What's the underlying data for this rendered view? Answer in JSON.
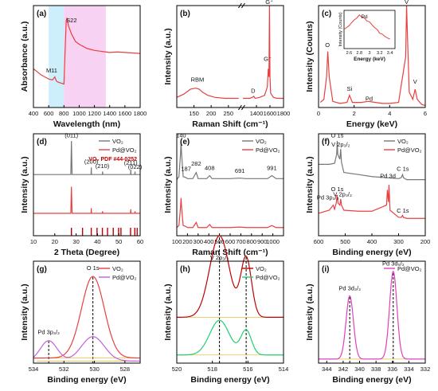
{
  "chart_data": [
    {
      "id": "a",
      "panel_label": "(a)",
      "type": "line",
      "xlabel": "Wavelength (nm)",
      "ylabel": "Absorbance (a.u.)",
      "xlim": [
        400,
        1800
      ],
      "xticks": [
        400,
        600,
        800,
        1000,
        1200,
        1400,
        1600,
        1800
      ],
      "ylim": [
        0,
        1
      ],
      "yticks_hidden": true,
      "bands": [
        {
          "x0": 600,
          "x1": 800,
          "color": "#cdeefb"
        },
        {
          "x0": 800,
          "x1": 1350,
          "color": "#f7d2f3"
        }
      ],
      "series": [
        {
          "color": "#e84040",
          "x": [
            400,
            450,
            500,
            550,
            600,
            650,
            680,
            700,
            720,
            760,
            800,
            815,
            830,
            840,
            860,
            900,
            950,
            1000,
            1050,
            1100,
            1200,
            1300,
            1400,
            1500,
            1600,
            1700,
            1800
          ],
          "y": [
            0.38,
            0.35,
            0.32,
            0.3,
            0.28,
            0.27,
            0.3,
            0.26,
            0.25,
            0.24,
            0.23,
            0.55,
            0.85,
            0.88,
            0.8,
            0.72,
            0.65,
            0.62,
            0.6,
            0.58,
            0.56,
            0.55,
            0.54,
            0.545,
            0.54,
            0.535,
            0.53
          ]
        }
      ],
      "annotations": [
        {
          "text": "M11",
          "x": 640,
          "y": 0.33
        },
        {
          "text": "S22",
          "x": 900,
          "y": 0.82
        }
      ]
    },
    {
      "id": "b",
      "panel_label": "(b)",
      "type": "line",
      "xlabel": "Raman Shift (cm⁻¹)",
      "ylabel": "Intensity (a.u.)",
      "xticks": [
        150,
        200,
        250,
        1400,
        1600,
        1800
      ],
      "axis_break": true,
      "ylim": [
        0,
        1
      ],
      "yticks_hidden": true,
      "series": [
        {
          "color": "#e84040",
          "left": {
            "x": [
              100,
              120,
              140,
              155,
              165,
              175,
              190,
              210,
              240,
              280
            ],
            "y": [
              0.1,
              0.13,
              0.18,
              0.19,
              0.18,
              0.15,
              0.12,
              0.1,
              0.09,
              0.09
            ]
          },
          "right": {
            "x": [
              1200,
              1300,
              1340,
              1360,
              1380,
              1450,
              1520,
              1560,
              1575,
              1585,
              1592,
              1600,
              1610,
              1650,
              1700,
              1800
            ],
            "y": [
              0.09,
              0.09,
              0.1,
              0.11,
              0.09,
              0.1,
              0.12,
              0.2,
              0.38,
              0.3,
              1.0,
              0.3,
              0.14,
              0.1,
              0.09,
              0.09
            ]
          }
        }
      ],
      "annotations": [
        {
          "text": "RBM",
          "x": 160,
          "y": 0.24
        },
        {
          "text": "D",
          "x": 1350,
          "y": 0.13
        },
        {
          "text": "G⁻",
          "x": 1565,
          "y": 0.44
        },
        {
          "text": "G⁺",
          "x": 1590,
          "y": 1.0
        }
      ]
    },
    {
      "id": "c",
      "panel_label": "(c)",
      "type": "line",
      "xlabel": "Energy (keV)",
      "ylabel": "Intensity (Counts)",
      "xlim": [
        0,
        6
      ],
      "xticks": [
        0,
        2,
        4,
        6
      ],
      "ylim": [
        0,
        1
      ],
      "yticks_hidden": true,
      "series": [
        {
          "color": "#e84040",
          "x": [
            0.1,
            0.3,
            0.45,
            0.52,
            0.6,
            0.8,
            1.2,
            1.6,
            1.74,
            1.9,
            2.4,
            2.8,
            3.2,
            3.6,
            4.0,
            4.5,
            4.9,
            4.95,
            5.0,
            5.1,
            5.3,
            5.43,
            5.55,
            5.8,
            6.0
          ],
          "y": [
            0.05,
            0.08,
            0.3,
            0.55,
            0.3,
            0.06,
            0.04,
            0.05,
            0.12,
            0.05,
            0.05,
            0.06,
            0.05,
            0.04,
            0.04,
            0.05,
            0.5,
            1.0,
            0.7,
            0.15,
            0.08,
            0.18,
            0.08,
            0.03,
            0.02
          ]
        }
      ],
      "annotations": [
        {
          "text": "O",
          "x": 0.5,
          "y": 0.58
        },
        {
          "text": "Si",
          "x": 1.74,
          "y": 0.15
        },
        {
          "text": "Pd",
          "x": 2.84,
          "y": 0.05
        },
        {
          "text": "V",
          "x": 4.95,
          "y": 1.0
        },
        {
          "text": "V",
          "x": 5.43,
          "y": 0.22
        }
      ],
      "inset": {
        "xlabel": "Energy (keV)",
        "ylabel": "Intensity (Counts)",
        "xticks": [
          2.6,
          2.8,
          3.0,
          3.2,
          3.4
        ],
        "xlim": [
          2.5,
          3.5
        ],
        "annotation": "Pd",
        "x": [
          2.5,
          2.55,
          2.6,
          2.65,
          2.7,
          2.75,
          2.8,
          2.85,
          2.9,
          2.95,
          3.0,
          3.05,
          3.1,
          3.15,
          3.2,
          3.25,
          3.3,
          3.35,
          3.4
        ],
        "y": [
          0.5,
          0.55,
          0.6,
          0.68,
          0.75,
          0.8,
          0.88,
          0.82,
          0.8,
          0.72,
          0.7,
          0.62,
          0.55,
          0.5,
          0.4,
          0.38,
          0.32,
          0.28,
          0.25
        ]
      }
    },
    {
      "id": "d",
      "panel_label": "(d)",
      "type": "line",
      "xlabel": "2 Theta (Degree)",
      "ylabel": "Intensity (a.u.)",
      "xlim": [
        10,
        60
      ],
      "xticks": [
        10,
        20,
        30,
        40,
        50,
        60
      ],
      "ylim": [
        0,
        1
      ],
      "yticks_hidden": true,
      "legend": {
        "position": "top-right",
        "note": "VO₂ PDF #44-0252"
      },
      "series": [
        {
          "name": "VO₂",
          "color": "#777777",
          "x": [
            10,
            27.5,
            27.8,
            28.1,
            37,
            37.1,
            37.2,
            42.3,
            42.4,
            42.5,
            55.5,
            55.6,
            55.7,
            57.5,
            57.6,
            57.7,
            60
          ],
          "y": [
            0.6,
            0.6,
            0.93,
            0.6,
            0.6,
            0.67,
            0.6,
            0.6,
            0.63,
            0.6,
            0.6,
            0.65,
            0.6,
            0.6,
            0.63,
            0.6,
            0.6
          ]
        },
        {
          "name": "Pd@VO₂",
          "color": "#e84040",
          "x": [
            10,
            27.5,
            27.8,
            28.1,
            37,
            37.1,
            37.2,
            42.3,
            42.4,
            42.5,
            55.5,
            55.6,
            55.7,
            57.5,
            57.6,
            57.7,
            60
          ],
          "y": [
            0.22,
            0.22,
            0.48,
            0.22,
            0.22,
            0.27,
            0.22,
            0.22,
            0.24,
            0.22,
            0.22,
            0.26,
            0.22,
            0.22,
            0.24,
            0.22,
            0.22
          ]
        }
      ],
      "reference_peaks": {
        "color": "#c00000",
        "x": [
          27.8,
          33.0,
          37.1,
          39.8,
          42.3,
          44.7,
          47.4,
          49.9,
          51.0,
          55.5,
          57.5,
          58.6
        ]
      },
      "annotations": [
        {
          "text": "(011)",
          "x": 27.8,
          "y": 0.95
        },
        {
          "text": "(200)",
          "x": 37.1,
          "y": 0.69
        },
        {
          "text": "(210)",
          "x": 42.3,
          "y": 0.65
        },
        {
          "text": "(211)",
          "x": 55.6,
          "y": 0.68
        },
        {
          "text": "(022)",
          "x": 57.6,
          "y": 0.64
        }
      ]
    },
    {
      "id": "e",
      "panel_label": "(e)",
      "type": "line",
      "xlabel": "Raman Shift (cm⁻¹)",
      "ylabel": "Intensity (a.u.)",
      "xlim": [
        100,
        1100
      ],
      "xticks": [
        100,
        200,
        300,
        400,
        500,
        600,
        700,
        800,
        900,
        1000
      ],
      "ylim": [
        0,
        1
      ],
      "yticks_hidden": true,
      "legend": {
        "position": "top-right"
      },
      "series": [
        {
          "name": "VO₂",
          "color": "#777777",
          "x": [
            100,
            120,
            135,
            140,
            145,
            160,
            187,
            200,
            250,
            282,
            300,
            380,
            408,
            430,
            600,
            691,
            750,
            950,
            991,
            1030,
            1100
          ],
          "y": [
            0.55,
            0.58,
            0.8,
            0.92,
            0.8,
            0.58,
            0.57,
            0.56,
            0.56,
            0.62,
            0.56,
            0.56,
            0.59,
            0.56,
            0.56,
            0.565,
            0.56,
            0.56,
            0.59,
            0.56,
            0.56
          ]
        },
        {
          "name": "Pd@VO₂",
          "color": "#e84040",
          "x": [
            100,
            120,
            135,
            140,
            145,
            160,
            187,
            200,
            250,
            282,
            300,
            380,
            408,
            430,
            600,
            691,
            750,
            950,
            991,
            1030,
            1100
          ],
          "y": [
            0.08,
            0.1,
            0.28,
            0.37,
            0.28,
            0.1,
            0.09,
            0.08,
            0.08,
            0.13,
            0.08,
            0.08,
            0.11,
            0.08,
            0.08,
            0.085,
            0.08,
            0.08,
            0.1,
            0.08,
            0.08
          ]
        }
      ],
      "annotations": [
        {
          "text": "140",
          "x": 140,
          "y": 0.95
        },
        {
          "text": "187",
          "x": 187,
          "y": 0.62
        },
        {
          "text": "282",
          "x": 282,
          "y": 0.67
        },
        {
          "text": "408",
          "x": 408,
          "y": 0.63
        },
        {
          "text": "691",
          "x": 691,
          "y": 0.6
        },
        {
          "text": "991",
          "x": 991,
          "y": 0.63
        }
      ]
    },
    {
      "id": "f",
      "panel_label": "(f)",
      "type": "line",
      "xlabel": "Binding energy (eV)",
      "ylabel": "Intensity (a.u.)",
      "xlim": [
        600,
        200
      ],
      "xticks": [
        600,
        500,
        400,
        300,
        200
      ],
      "ylim": [
        0,
        1
      ],
      "yticks_hidden": true,
      "legend": {
        "position": "top-right"
      },
      "series": [
        {
          "name": "VO₂",
          "color": "#777777",
          "x": [
            600,
            560,
            540,
            532,
            530,
            528,
            520,
            517,
            514,
            505,
            450,
            400,
            300,
            290,
            285,
            282,
            270,
            200
          ],
          "y": [
            0.7,
            0.7,
            0.71,
            0.8,
            0.93,
            0.8,
            0.75,
            0.85,
            0.72,
            0.62,
            0.6,
            0.58,
            0.56,
            0.57,
            0.6,
            0.57,
            0.55,
            0.55
          ]
        },
        {
          "name": "Pd@VO₂",
          "color": "#e84040",
          "x": [
            600,
            560,
            545,
            540,
            533,
            530,
            527,
            520,
            517,
            514,
            505,
            450,
            400,
            345,
            342,
            338,
            336,
            332,
            300,
            290,
            285,
            282,
            270,
            200
          ],
          "y": [
            0.22,
            0.25,
            0.3,
            0.26,
            0.33,
            0.4,
            0.32,
            0.3,
            0.36,
            0.3,
            0.25,
            0.24,
            0.24,
            0.3,
            0.45,
            0.33,
            0.5,
            0.25,
            0.18,
            0.18,
            0.2,
            0.18,
            0.17,
            0.17
          ]
        }
      ],
      "annotations": [
        {
          "text": "O 1s",
          "x": 530,
          "y": 0.95
        },
        {
          "text": "V 2p₃/₂",
          "x": 517,
          "y": 0.86
        },
        {
          "text": "C 1s",
          "x": 284,
          "y": 0.62
        },
        {
          "text": "Pd 3p₃/₂",
          "x": 565,
          "y": 0.34
        },
        {
          "text": "O 1s",
          "x": 530,
          "y": 0.42
        },
        {
          "text": "V 2p₃/₂",
          "x": 510,
          "y": 0.37
        },
        {
          "text": "Pd 3d",
          "x": 340,
          "y": 0.55
        },
        {
          "text": "C 1s",
          "x": 284,
          "y": 0.21
        }
      ]
    },
    {
      "id": "g",
      "panel_label": "(g)",
      "type": "line",
      "xlabel": "Binding energy (eV)",
      "ylabel": "Intensity (a.u.)",
      "xlim": [
        534,
        527
      ],
      "xticks": [
        534,
        532,
        530,
        528
      ],
      "ylim": [
        0,
        1
      ],
      "yticks_hidden": true,
      "legend": {
        "position": "top-right"
      },
      "series": [
        {
          "name": "VO₂",
          "color": "#e84040",
          "type": "gaussian",
          "peaks": [
            {
              "center": 530.1,
              "height": 0.8,
              "width": 0.75
            }
          ],
          "baseline": 0.05
        },
        {
          "name": "Pd@VO₂",
          "color": "#c060e0",
          "type": "gaussian",
          "peaks": [
            {
              "center": 533.0,
              "height": 0.2,
              "width": 0.55
            },
            {
              "center": 530.1,
              "height": 0.24,
              "width": 0.75
            }
          ],
          "baseline": 0.02
        }
      ],
      "dashed_lines": [
        533.0,
        530.1
      ],
      "annotations": [
        {
          "text": "O 1s",
          "x": 530.1,
          "y": 0.9
        },
        {
          "text": "Pd 3p₃/₂",
          "x": 533.0,
          "y": 0.27
        }
      ]
    },
    {
      "id": "h",
      "panel_label": "(h)",
      "type": "line",
      "xlabel": "Binding energy (eV)",
      "ylabel": "Intensity (a.u.)",
      "xlim": [
        520,
        514
      ],
      "xticks": [
        520,
        518,
        516,
        514
      ],
      "ylim": [
        0,
        1
      ],
      "yticks_hidden": true,
      "legend": {
        "position": "top-right"
      },
      "series": [
        {
          "name": "VO₂",
          "color": "#c00000",
          "type": "gaussian",
          "peaks": [
            {
              "center": 517.6,
              "height": 0.8,
              "width": 0.55
            },
            {
              "center": 516.1,
              "height": 0.58,
              "width": 0.3
            }
          ],
          "baseline": 0.45
        },
        {
          "name": "Pd@VO₂",
          "color": "#20d070",
          "type": "gaussian",
          "peaks": [
            {
              "center": 517.6,
              "height": 0.34,
              "width": 0.55
            },
            {
              "center": 516.1,
              "height": 0.24,
              "width": 0.3
            }
          ],
          "baseline": 0.08
        }
      ],
      "dashed_lines": [
        517.6,
        516.1
      ],
      "annotations": [
        {
          "text": "V 2p₃/₂",
          "x": 517.6,
          "y": 1.0
        }
      ]
    },
    {
      "id": "i",
      "panel_label": "(i)",
      "type": "line",
      "xlabel": "Binding energy (eV)",
      "ylabel": "Intensity (a.u.)",
      "xlim": [
        345,
        332
      ],
      "xticks": [
        344,
        342,
        340,
        338,
        336,
        334,
        332
      ],
      "ylim": [
        0,
        1
      ],
      "yticks_hidden": true,
      "legend": {
        "position": "top-right"
      },
      "series": [
        {
          "name": "Pd@VO₂",
          "color": "#e040c0",
          "type": "gaussian",
          "peaks": [
            {
              "center": 341.2,
              "height": 0.62,
              "width": 0.45
            },
            {
              "center": 335.9,
              "height": 0.86,
              "width": 0.45
            }
          ],
          "baseline": 0.04
        }
      ],
      "dashed_lines": [
        341.2,
        335.9
      ],
      "annotations": [
        {
          "text": "Pd 3d₃/₂",
          "x": 341.2,
          "y": 0.7
        },
        {
          "text": "Pd 3d₅/₂",
          "x": 335.9,
          "y": 0.94
        }
      ]
    }
  ]
}
